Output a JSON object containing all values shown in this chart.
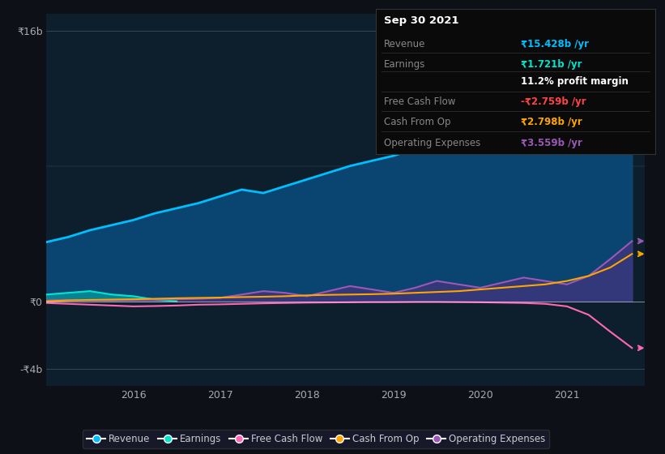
{
  "bg_color": "#0d1117",
  "plot_bg_color": "#0d1f2d",
  "plot_bg_color2": "#0a1929",
  "title": "Sep 30 2021",
  "y_labels": [
    "₹16b",
    "₹0",
    "-₹4b"
  ],
  "y_values": [
    16000000000.0,
    0,
    -4000000000.0
  ],
  "x_ticks": [
    2016,
    2017,
    2018,
    2019,
    2020,
    2021
  ],
  "ylim": [
    -5000000000.0,
    17000000000.0
  ],
  "xlim_start": 2015.0,
  "xlim_end": 2021.9,
  "legend": [
    {
      "label": "Revenue",
      "color": "#00bfff"
    },
    {
      "label": "Earnings",
      "color": "#00e5cc"
    },
    {
      "label": "Free Cash Flow",
      "color": "#ff69b4"
    },
    {
      "label": "Cash From Op",
      "color": "#ffa500"
    },
    {
      "label": "Operating Expenses",
      "color": "#9b59b6"
    }
  ],
  "tooltip": {
    "date": "Sep 30 2021",
    "Revenue": {
      "value": "₹15.428b",
      "color": "#00bfff"
    },
    "Earnings": {
      "value": "₹1.721b",
      "color": "#00e5cc"
    },
    "profit_margin": "11.2%",
    "Free Cash Flow": {
      "value": "-₹2.759b",
      "color": "#ff4444"
    },
    "Cash From Op": {
      "value": "₹2.798b",
      "color": "#ffa500"
    },
    "Operating Expenses": {
      "value": "₹3.559b",
      "color": "#9b59b6"
    }
  },
  "revenue_x": [
    2015.0,
    2015.25,
    2015.5,
    2015.75,
    2016.0,
    2016.25,
    2016.5,
    2016.75,
    2017.0,
    2017.25,
    2017.5,
    2017.75,
    2018.0,
    2018.25,
    2018.5,
    2018.75,
    2019.0,
    2019.25,
    2019.5,
    2019.75,
    2020.0,
    2020.25,
    2020.5,
    2020.75,
    2021.0,
    2021.25,
    2021.5,
    2021.75
  ],
  "revenue_y": [
    3500000000.0,
    3800000000.0,
    4200000000.0,
    4500000000.0,
    4800000000.0,
    5200000000.0,
    5500000000.0,
    5800000000.0,
    6200000000.0,
    6600000000.0,
    6400000000.0,
    6800000000.0,
    7200000000.0,
    7600000000.0,
    8000000000.0,
    8300000000.0,
    8600000000.0,
    9000000000.0,
    9500000000.0,
    10000000000.0,
    10500000000.0,
    11000000000.0,
    11200000000.0,
    10800000000.0,
    10200000000.0,
    11500000000.0,
    13500000000.0,
    15400000000.0
  ],
  "earnings_x": [
    2015.0,
    2015.25,
    2015.5,
    2015.75,
    2016.0,
    2016.25,
    2016.5
  ],
  "earnings_y": [
    400000000.0,
    500000000.0,
    600000000.0,
    400000000.0,
    300000000.0,
    100000000.0,
    0.0
  ],
  "fcf_x": [
    2015.0,
    2015.25,
    2015.5,
    2015.75,
    2016.0,
    2016.25,
    2016.5,
    2016.75,
    2017.0,
    2017.25,
    2017.5,
    2017.75,
    2018.0,
    2018.25,
    2018.5,
    2018.75,
    2019.0,
    2019.25,
    2019.5,
    2019.75,
    2020.0,
    2020.25,
    2020.5,
    2020.75,
    2021.0,
    2021.25,
    2021.5,
    2021.75
  ],
  "fcf_y": [
    -100000000.0,
    -150000000.0,
    -200000000.0,
    -250000000.0,
    -300000000.0,
    -280000000.0,
    -250000000.0,
    -200000000.0,
    -180000000.0,
    -150000000.0,
    -120000000.0,
    -100000000.0,
    -80000000.0,
    -70000000.0,
    -60000000.0,
    -50000000.0,
    -50000000.0,
    -40000000.0,
    -40000000.0,
    -50000000.0,
    -60000000.0,
    -80000000.0,
    -100000000.0,
    -150000000.0,
    -300000000.0,
    -800000000.0,
    -1800000000.0,
    -2759000000.0
  ],
  "cashfromop_x": [
    2015.0,
    2015.25,
    2015.5,
    2015.75,
    2016.0,
    2016.25,
    2016.5,
    2016.75,
    2017.0,
    2017.25,
    2017.5,
    2017.75,
    2018.0,
    2018.25,
    2018.5,
    2018.75,
    2019.0,
    2019.25,
    2019.5,
    2019.75,
    2020.0,
    2020.25,
    2020.5,
    2020.75,
    2021.0,
    2021.25,
    2021.5,
    2021.75
  ],
  "cashfromop_y": [
    0.0,
    50000000.0,
    80000000.0,
    100000000.0,
    120000000.0,
    150000000.0,
    180000000.0,
    200000000.0,
    220000000.0,
    250000000.0,
    270000000.0,
    300000000.0,
    350000000.0,
    380000000.0,
    400000000.0,
    420000000.0,
    450000000.0,
    500000000.0,
    550000000.0,
    600000000.0,
    700000000.0,
    800000000.0,
    900000000.0,
    1000000000.0,
    1200000000.0,
    1500000000.0,
    2000000000.0,
    2798000000.0
  ],
  "opex_x": [
    2015.0,
    2015.25,
    2015.5,
    2015.75,
    2016.0,
    2016.25,
    2016.5,
    2016.75,
    2017.0,
    2017.25,
    2017.5,
    2017.75,
    2018.0,
    2018.25,
    2018.5,
    2018.75,
    2019.0,
    2019.25,
    2019.5,
    2019.75,
    2020.0,
    2020.25,
    2020.5,
    2020.75,
    2021.0,
    2021.25,
    2021.5,
    2021.75
  ],
  "opex_y": [
    50000000.0,
    80000000.0,
    60000000.0,
    50000000.0,
    80000000.0,
    100000000.0,
    120000000.0,
    150000000.0,
    200000000.0,
    400000000.0,
    600000000.0,
    500000000.0,
    300000000.0,
    600000000.0,
    900000000.0,
    700000000.0,
    500000000.0,
    800000000.0,
    1200000000.0,
    1000000000.0,
    800000000.0,
    1100000000.0,
    1400000000.0,
    1200000000.0,
    1000000000.0,
    1500000000.0,
    2500000000.0,
    3559000000.0
  ]
}
